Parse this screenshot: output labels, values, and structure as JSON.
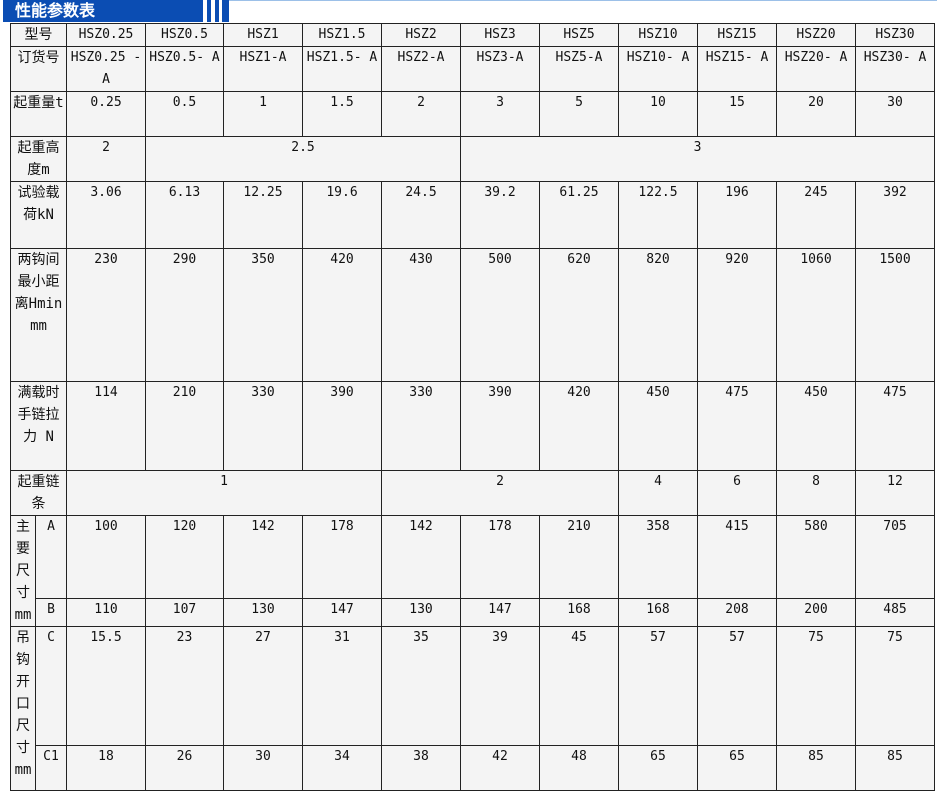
{
  "title": "性能参数表",
  "colors": {
    "banner": "#0b4db3",
    "cell_bg": "#f4f4f4"
  },
  "models": [
    "HSZ0.25",
    "HSZ0.5",
    "HSZ1",
    "HSZ1.5",
    "HSZ2",
    "HSZ3",
    "HSZ5",
    "HSZ10",
    "HSZ15",
    "HSZ20",
    "HSZ30"
  ],
  "order_numbers": [
    "HSZ0.25 -A",
    "HSZ0.5- A",
    "HSZ1-A",
    "HSZ1.5- A",
    "HSZ2-A",
    "HSZ3-A",
    "HSZ5-A",
    "HSZ10- A",
    "HSZ15- A",
    "HSZ20- A",
    "HSZ30- A"
  ],
  "labels": {
    "model": "型号",
    "order": "订货号",
    "load": "起重量t",
    "height": "起重高度m",
    "test": "试验载荷kN",
    "hmin": "两钩间最小距离Hmin mm",
    "pull": "满载时手链拉力 N",
    "chain": "起重链条",
    "main": "主要尺寸mm",
    "hook": "吊钩开口尺寸mm",
    "A": "A",
    "B": "B",
    "C": "C",
    "C1": "C1"
  },
  "load": [
    "0.25",
    "0.5",
    "1",
    "1.5",
    "2",
    "3",
    "5",
    "10",
    "15",
    "20",
    "30"
  ],
  "height": [
    "2",
    "2.5",
    "3"
  ],
  "test": [
    "3.06",
    "6.13",
    "12.25",
    "19.6",
    "24.5",
    "39.2",
    "61.25",
    "122.5",
    "196",
    "245",
    "392"
  ],
  "hmin": [
    "230",
    "290",
    "350",
    "420",
    "430",
    "500",
    "620",
    "820",
    "920",
    "1060",
    "1500"
  ],
  "pull": [
    "114",
    "210",
    "330",
    "390",
    "330",
    "390",
    "420",
    "450",
    "475",
    "450",
    "475"
  ],
  "chain": [
    "1",
    "2",
    "4",
    "6",
    "8",
    "12"
  ],
  "A": [
    "100",
    "120",
    "142",
    "178",
    "142",
    "178",
    "210",
    "358",
    "415",
    "580",
    "705"
  ],
  "B": [
    "110",
    "107",
    "130",
    "147",
    "130",
    "147",
    "168",
    "168",
    "208",
    "200",
    "485"
  ],
  "C": [
    "15.5",
    "23",
    "27",
    "31",
    "35",
    "39",
    "45",
    "57",
    "57",
    "75",
    "75"
  ],
  "C1": [
    "18",
    "26",
    "30",
    "34",
    "38",
    "42",
    "48",
    "65",
    "65",
    "85",
    "85"
  ]
}
